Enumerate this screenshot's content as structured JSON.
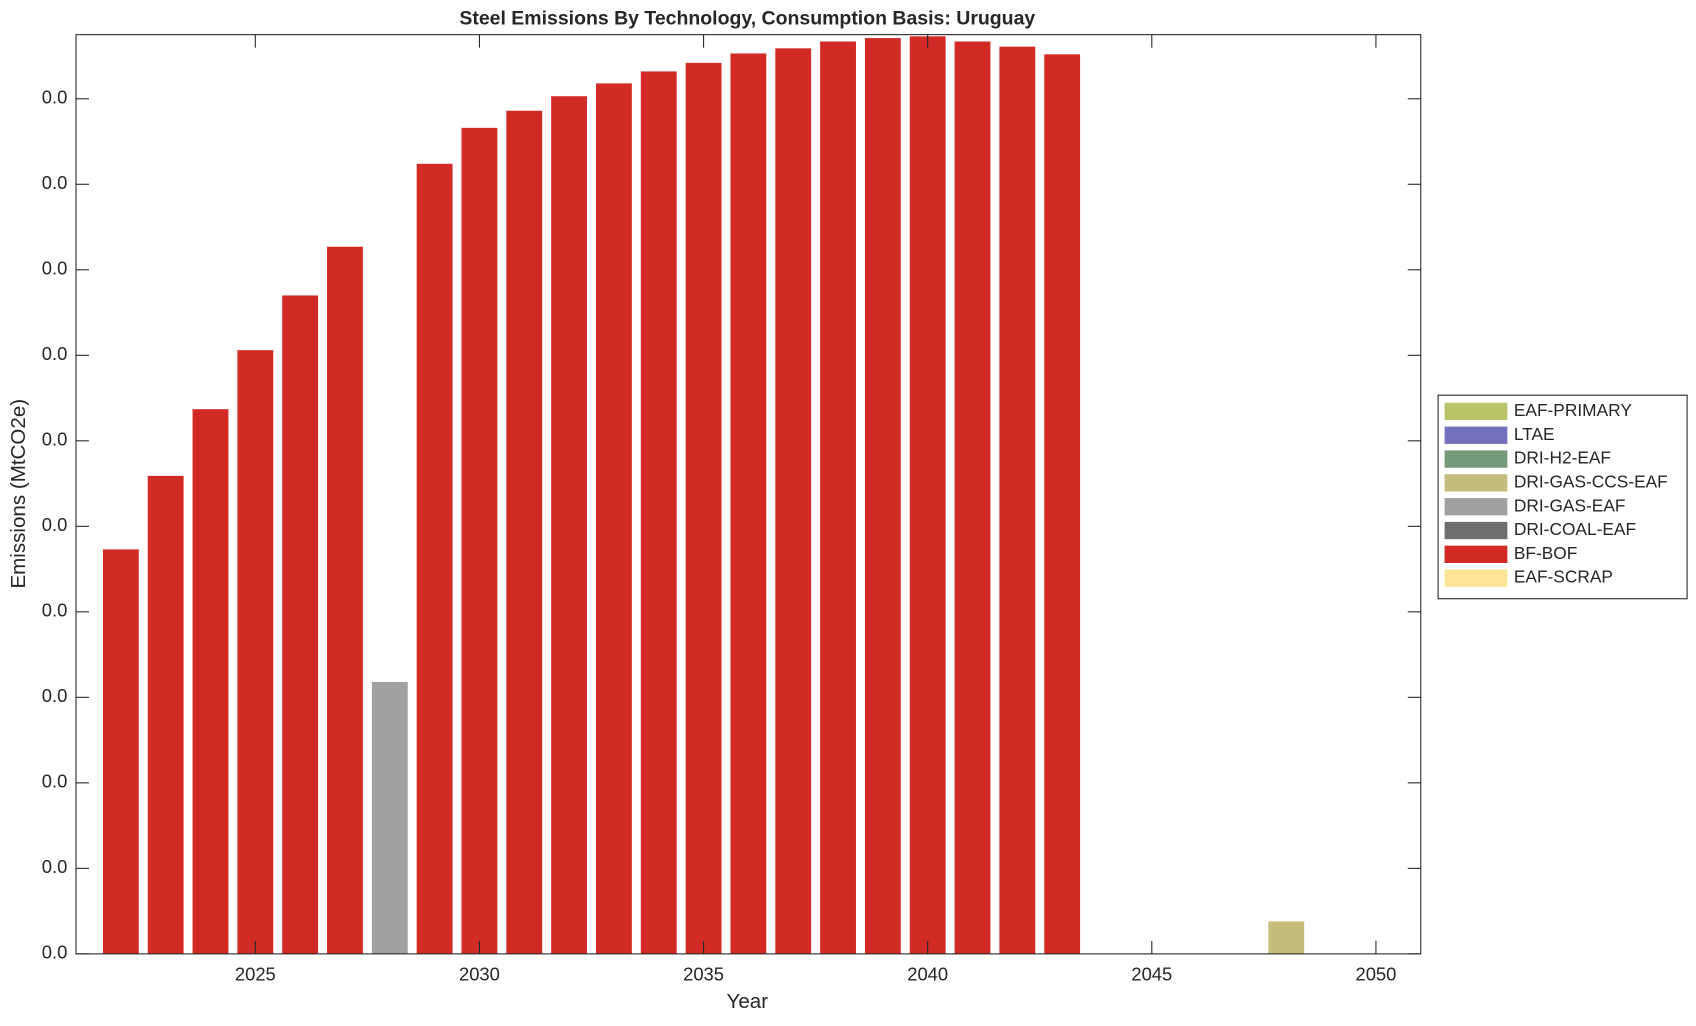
{
  "chart_data": {
    "type": "stacked_bar",
    "title": "Steel Emissions By Technology, Consumption Basis: Uruguay",
    "xlabel": "Year",
    "ylabel": "Emissions (MtCO2e)",
    "x": [
      2022,
      2023,
      2024,
      2025,
      2026,
      2027,
      2028,
      2029,
      2030,
      2031,
      2032,
      2033,
      2034,
      2035,
      2036,
      2037,
      2038,
      2039,
      2040,
      2041,
      2042,
      2043,
      2044,
      2045,
      2046,
      2047,
      2048,
      2049,
      2050
    ],
    "series": [
      {
        "name": "EAF-PRIMARY",
        "color": "#bcc46a",
        "values": [
          0,
          0,
          0,
          0,
          0,
          0,
          0,
          0,
          0,
          0,
          0,
          0,
          0,
          0,
          0,
          0,
          0,
          0,
          0,
          0,
          0,
          0,
          0,
          0,
          0,
          0,
          0,
          0,
          0
        ]
      },
      {
        "name": "LTAE",
        "color": "#7370bd",
        "values": [
          0,
          0,
          0,
          0,
          0,
          0,
          0,
          0,
          0,
          0,
          0,
          0,
          0,
          0,
          0,
          0,
          0,
          0,
          0,
          0,
          0,
          0,
          0,
          0,
          0,
          0,
          0,
          0,
          0
        ]
      },
      {
        "name": "DRI-H2-EAF",
        "color": "#749a7a",
        "values": [
          0,
          0,
          0,
          0,
          0,
          0,
          0,
          0,
          0,
          0,
          0,
          0,
          0,
          0,
          0,
          0,
          0,
          0,
          0,
          0,
          0,
          0,
          0,
          0,
          0,
          0,
          0,
          0,
          0
        ]
      },
      {
        "name": "DRI-GAS-CCS-EAF",
        "color": "#c6bd7d",
        "values": [
          0,
          0,
          0,
          0,
          0,
          0,
          0,
          0,
          0,
          0,
          0,
          0,
          0,
          0,
          0,
          0,
          0,
          0,
          0,
          0,
          0,
          0,
          0,
          0,
          0,
          0,
          0.00038,
          0,
          0
        ]
      },
      {
        "name": "DRI-GAS-EAF",
        "color": "#a0a09f",
        "values": [
          0,
          0,
          0,
          0,
          0,
          0,
          0.00318,
          0,
          0,
          0,
          0,
          0,
          0,
          0,
          0,
          0,
          0,
          0,
          0,
          0,
          0,
          0,
          0,
          0,
          0,
          0,
          0,
          0,
          0
        ]
      },
      {
        "name": "DRI-COAL-EAF",
        "color": "#6e6e6e",
        "values": [
          0,
          0,
          0,
          0,
          0,
          0,
          0,
          0,
          0,
          0,
          0,
          0,
          0,
          0,
          0,
          0,
          0,
          0,
          0,
          0,
          0,
          0,
          0,
          0,
          0,
          0,
          0,
          0,
          0
        ]
      },
      {
        "name": "BF-BOF",
        "color": "#d22b26",
        "values": [
          0.00473,
          0.00559,
          0.00637,
          0.00706,
          0.0077,
          0.00827,
          0,
          0.00924,
          0.00966,
          0.00986,
          0.01003,
          0.01018,
          0.01032,
          0.01042,
          0.01053,
          0.01059,
          0.01067,
          0.01071,
          0.01073,
          0.01067,
          0.01061,
          0.01052,
          0,
          0,
          0,
          0,
          0,
          0,
          0
        ]
      },
      {
        "name": "EAF-SCRAP",
        "color": "#fde597",
        "values": [
          0,
          0,
          0,
          0,
          0,
          0,
          0,
          0,
          0,
          0,
          0,
          0,
          0,
          0,
          0,
          0,
          0,
          0,
          0,
          0,
          0,
          0,
          0,
          0,
          0,
          0,
          0,
          0,
          0
        ]
      }
    ],
    "xlim": [
      2021,
      2051
    ],
    "xticks": [
      2025,
      2030,
      2035,
      2040,
      2045,
      2050
    ],
    "ylim": [
      0,
      0.01075
    ],
    "yticks": [
      {
        "value": 0,
        "label": "0.0"
      },
      {
        "value": 0.001,
        "label": "0.0"
      },
      {
        "value": 0.002,
        "label": "0.0"
      },
      {
        "value": 0.003,
        "label": "0.0"
      },
      {
        "value": 0.004,
        "label": "0.0"
      },
      {
        "value": 0.005,
        "label": "0.0"
      },
      {
        "value": 0.006,
        "label": "0.0"
      },
      {
        "value": 0.007,
        "label": "0.0"
      },
      {
        "value": 0.008,
        "label": "0.0"
      },
      {
        "value": 0.009,
        "label": "0.0"
      },
      {
        "value": 0.01,
        "label": "0.0"
      }
    ],
    "legend": "right"
  }
}
